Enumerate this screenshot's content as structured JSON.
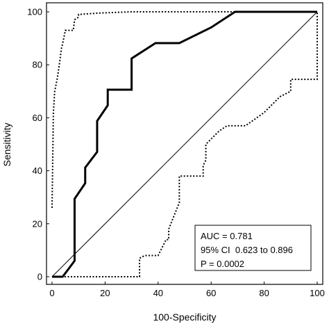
{
  "chart_data": {
    "type": "line",
    "xlabel": "100-Specificity",
    "ylabel": "Sensitivity",
    "xlim": [
      0,
      100
    ],
    "ylim": [
      0,
      100
    ],
    "xticks": [
      "0",
      "20",
      "40",
      "60",
      "80",
      "100"
    ],
    "yticks": [
      "0",
      "20",
      "40",
      "60",
      "80",
      "100"
    ],
    "grid": false,
    "series": [
      {
        "role": "roc",
        "style": "solid-thick",
        "x": [
          0,
          4,
          8.5,
          8.5,
          12.5,
          12.5,
          17,
          17,
          21,
          21,
          30,
          30,
          39,
          48,
          60,
          69,
          80,
          100
        ],
        "y": [
          0,
          0,
          6,
          29.4,
          35.3,
          41.2,
          47.1,
          58.8,
          64.7,
          70.6,
          70.6,
          82.4,
          88.2,
          88.2,
          94.1,
          100,
          100,
          100
        ]
      },
      {
        "role": "ci-upper",
        "style": "dotted",
        "x": [
          0,
          0.5,
          1,
          2,
          3,
          3.5,
          4,
          5,
          6,
          8,
          8.5,
          10,
          10,
          17,
          30,
          50,
          100
        ],
        "y": [
          26,
          62,
          70,
          75,
          82,
          86,
          88,
          93,
          93,
          93,
          97,
          98,
          99,
          99.5,
          100,
          100,
          100
        ]
      },
      {
        "role": "ci-lower",
        "style": "dotted",
        "x": [
          0,
          33,
          33,
          35,
          40,
          42,
          43,
          44,
          44,
          48,
          48,
          57,
          57,
          58,
          58,
          63,
          66,
          73,
          80,
          86,
          90,
          90,
          100,
          100
        ],
        "y": [
          0,
          0,
          7,
          8,
          8,
          12,
          14,
          14,
          18,
          28,
          38,
          38,
          42,
          44,
          50,
          55,
          57,
          57,
          62,
          68,
          70,
          74.5,
          74.5,
          100
        ]
      },
      {
        "role": "reference",
        "style": "solid-thin",
        "x": [
          0,
          100
        ],
        "y": [
          0,
          100
        ]
      }
    ],
    "annotations": [
      "AUC = 0.781",
      "95% CI  0.623 to 0.896",
      "P = 0.0002"
    ]
  }
}
